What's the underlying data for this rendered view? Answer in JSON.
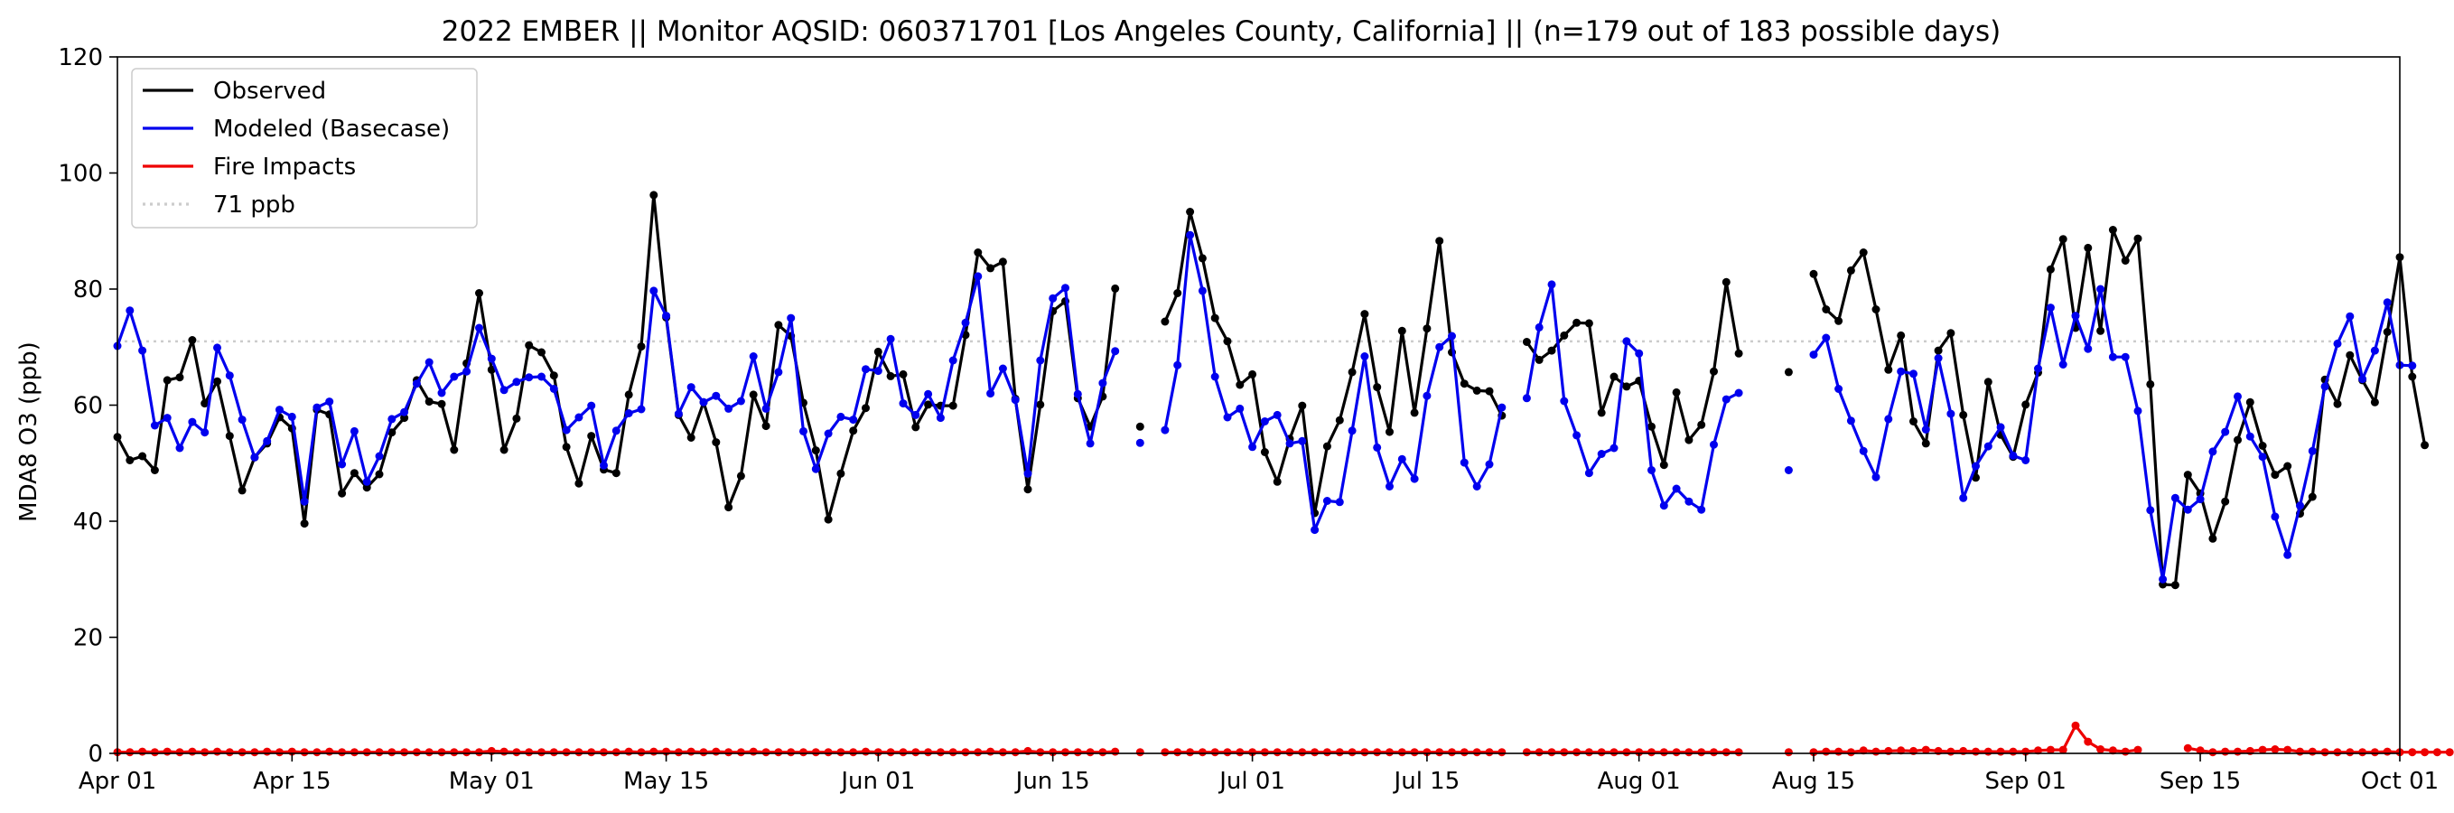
{
  "chart_data": {
    "type": "line",
    "title": "2022 EMBER || Monitor AQSID: 060371701 [Los Angeles County, California] || (n=179 out of 183 possible days)",
    "xlabel": "",
    "ylabel": "MDA8 O3 (ppb)",
    "x_start": "2022-04-01",
    "xlim": [
      "2022-04-01",
      "2022-10-01"
    ],
    "ylim": [
      0,
      120
    ],
    "yticks": [
      0,
      20,
      40,
      60,
      80,
      100,
      120
    ],
    "xticks": [
      {
        "date": "2022-04-01",
        "label": "Apr 01"
      },
      {
        "date": "2022-04-15",
        "label": "Apr 15"
      },
      {
        "date": "2022-05-01",
        "label": "May 01"
      },
      {
        "date": "2022-05-15",
        "label": "May 15"
      },
      {
        "date": "2022-06-01",
        "label": "Jun 01"
      },
      {
        "date": "2022-06-15",
        "label": "Jun 15"
      },
      {
        "date": "2022-07-01",
        "label": "Jul 01"
      },
      {
        "date": "2022-07-15",
        "label": "Jul 15"
      },
      {
        "date": "2022-08-01",
        "label": "Aug 01"
      },
      {
        "date": "2022-08-15",
        "label": "Aug 15"
      },
      {
        "date": "2022-09-01",
        "label": "Sep 01"
      },
      {
        "date": "2022-09-15",
        "label": "Sep 15"
      },
      {
        "date": "2022-10-01",
        "label": "Oct 01"
      }
    ],
    "grid": false,
    "legend_position": "top-left",
    "reference_line": {
      "name": "71 ppb",
      "value": 71,
      "color": "#cccccc"
    },
    "series": [
      {
        "name": "Observed",
        "color": "#000000",
        "values": [
          54.5,
          50.5,
          51.2,
          48.8,
          64.3,
          64.8,
          71.2,
          60.3,
          64.1,
          54.7,
          45.3,
          51.0,
          53.4,
          57.9,
          56.0,
          39.6,
          59.2,
          58.4,
          44.8,
          48.3,
          45.8,
          48.1,
          55.3,
          57.8,
          64.3,
          60.6,
          60.2,
          52.3,
          67.2,
          79.3,
          66.1,
          52.3,
          57.7,
          70.3,
          69.1,
          65.1,
          52.8,
          46.5,
          54.7,
          48.9,
          48.3,
          61.8,
          70.1,
          96.2,
          75.1,
          58.3,
          54.4,
          60.5,
          53.6,
          42.4,
          47.8,
          61.8,
          56.4,
          73.8,
          71.9,
          60.4,
          52.2,
          40.3,
          48.2,
          55.6,
          59.5,
          69.2,
          65.0,
          65.3,
          56.2,
          60.1,
          59.9,
          59.9,
          72.1,
          86.3,
          83.6,
          84.7,
          61.1,
          45.5,
          60.1,
          76.2,
          77.9,
          61.2,
          56.3,
          61.5,
          80.1,
          null,
          56.3,
          null,
          74.4,
          79.3,
          93.3,
          85.3,
          75.0,
          71.0,
          63.5,
          65.3,
          51.9,
          46.8,
          54.2,
          59.9,
          41.4,
          52.9,
          57.4,
          65.7,
          75.7,
          63.1,
          55.4,
          72.8,
          58.7,
          73.2,
          88.3,
          69.1,
          63.7,
          62.5,
          62.4,
          58.2,
          null,
          70.9,
          67.8,
          69.4,
          72.0,
          74.2,
          74.1,
          58.7,
          64.9,
          63.2,
          64.2,
          56.3,
          49.7,
          62.2,
          54.0,
          56.6,
          65.8,
          81.2,
          68.9,
          null,
          null,
          null,
          65.7,
          null,
          82.6,
          76.5,
          74.5,
          83.2,
          86.3,
          76.5,
          66.1,
          72.0,
          57.2,
          53.4,
          69.4,
          72.4,
          58.3,
          47.5,
          64.0,
          54.9,
          51.1,
          60.1,
          65.6,
          83.4,
          88.6,
          73.3,
          87.1,
          72.8,
          90.2,
          84.9,
          88.7,
          63.6,
          29.1,
          29.0,
          48.0,
          44.8,
          37.0,
          43.4,
          54.0,
          60.5,
          53.0,
          48.0,
          49.5,
          41.3,
          44.2,
          64.4,
          60.2,
          68.6,
          64.3,
          60.5,
          72.6,
          85.5,
          64.9,
          53.1
        ]
      },
      {
        "name": "Modeled (Basecase)",
        "color": "#0000ee",
        "values": [
          70.2,
          76.3,
          69.4,
          56.5,
          57.8,
          52.6,
          57.1,
          55.3,
          69.9,
          65.1,
          57.5,
          51.0,
          53.8,
          59.2,
          58.0,
          43.4,
          59.6,
          60.6,
          49.8,
          55.5,
          46.8,
          51.2,
          57.6,
          58.8,
          63.7,
          67.4,
          62.1,
          64.9,
          65.8,
          73.3,
          68.0,
          62.6,
          64.0,
          64.8,
          64.9,
          62.8,
          55.7,
          57.9,
          59.9,
          49.6,
          55.6,
          58.6,
          59.3,
          79.7,
          75.4,
          58.5,
          63.1,
          60.5,
          61.6,
          59.4,
          60.7,
          68.4,
          59.4,
          65.7,
          75.0,
          55.5,
          49.0,
          55.1,
          58.0,
          57.5,
          66.2,
          65.9,
          71.4,
          60.3,
          58.3,
          61.9,
          57.8,
          67.7,
          74.2,
          82.2,
          62.0,
          66.3,
          60.9,
          48.2,
          67.7,
          78.4,
          80.2,
          61.9,
          53.4,
          63.8,
          69.3,
          null,
          53.5,
          null,
          55.7,
          66.9,
          89.3,
          79.7,
          64.9,
          57.9,
          59.4,
          52.8,
          57.2,
          58.3,
          53.4,
          53.8,
          38.5,
          43.5,
          43.3,
          55.6,
          68.4,
          52.7,
          46.0,
          50.7,
          47.3,
          61.6,
          70.0,
          71.9,
          50.1,
          46.0,
          49.8,
          59.6,
          null,
          61.2,
          73.4,
          80.8,
          60.7,
          54.8,
          48.3,
          51.6,
          52.6,
          71.0,
          68.9,
          48.8,
          42.7,
          45.6,
          43.4,
          42.0,
          53.2,
          61.0,
          62.1,
          null,
          null,
          null,
          48.8,
          null,
          68.7,
          71.6,
          62.8,
          57.3,
          52.1,
          47.6,
          57.6,
          65.8,
          65.4,
          55.8,
          68.1,
          58.5,
          44.0,
          49.5,
          52.9,
          56.2,
          51.3,
          50.5,
          66.3,
          76.8,
          67.0,
          75.4,
          69.7,
          80.0,
          68.3,
          68.3,
          59.0,
          41.9,
          30.0,
          44.0,
          42.0,
          43.8,
          52.0,
          55.4,
          61.5,
          54.6,
          51.1,
          40.8,
          34.2,
          42.7,
          52.1,
          63.2,
          70.6,
          75.3,
          64.5,
          69.4,
          77.7,
          66.9,
          66.8
        ]
      },
      {
        "name": "Fire Impacts",
        "color": "#ee0000",
        "values": [
          0.2,
          0.2,
          0.3,
          0.2,
          0.3,
          0.2,
          0.3,
          0.2,
          0.3,
          0.2,
          0.2,
          0.2,
          0.3,
          0.2,
          0.3,
          0.2,
          0.2,
          0.3,
          0.2,
          0.2,
          0.2,
          0.2,
          0.2,
          0.2,
          0.2,
          0.2,
          0.2,
          0.2,
          0.2,
          0.2,
          0.4,
          0.3,
          0.2,
          0.2,
          0.2,
          0.2,
          0.2,
          0.2,
          0.2,
          0.2,
          0.2,
          0.3,
          0.2,
          0.3,
          0.3,
          0.2,
          0.3,
          0.2,
          0.3,
          0.2,
          0.2,
          0.3,
          0.2,
          0.2,
          0.2,
          0.2,
          0.2,
          0.2,
          0.2,
          0.2,
          0.3,
          0.2,
          0.2,
          0.2,
          0.2,
          0.2,
          0.2,
          0.2,
          0.2,
          0.2,
          0.3,
          0.2,
          0.2,
          0.4,
          0.2,
          0.2,
          0.2,
          0.2,
          0.2,
          0.2,
          0.3,
          null,
          0.2,
          null,
          0.2,
          0.2,
          0.2,
          0.2,
          0.2,
          0.2,
          0.2,
          0.2,
          0.2,
          0.2,
          0.2,
          0.2,
          0.2,
          0.2,
          0.2,
          0.2,
          0.2,
          0.2,
          0.2,
          0.2,
          0.2,
          0.2,
          0.2,
          0.2,
          0.2,
          0.2,
          0.2,
          0.2,
          null,
          0.2,
          0.2,
          0.2,
          0.2,
          0.2,
          0.2,
          0.2,
          0.2,
          0.2,
          0.2,
          0.2,
          0.2,
          0.2,
          0.2,
          0.2,
          0.2,
          0.2,
          0.2,
          null,
          null,
          null,
          0.2,
          null,
          0.2,
          0.3,
          0.3,
          0.2,
          0.5,
          0.3,
          0.4,
          0.5,
          0.4,
          0.6,
          0.4,
          0.3,
          0.4,
          0.3,
          0.3,
          0.3,
          0.3,
          0.3,
          0.5,
          0.6,
          0.6,
          4.8,
          2.0,
          0.7,
          0.5,
          0.3,
          0.6,
          null,
          null,
          null,
          0.9,
          0.5,
          0.2,
          0.3,
          0.3,
          0.4,
          0.6,
          0.7,
          0.6,
          0.3,
          0.3,
          0.2,
          0.2,
          0.2,
          0.2,
          0.2,
          0.3,
          0.2,
          0.2,
          0.2,
          0.2,
          0.2
        ]
      }
    ]
  }
}
